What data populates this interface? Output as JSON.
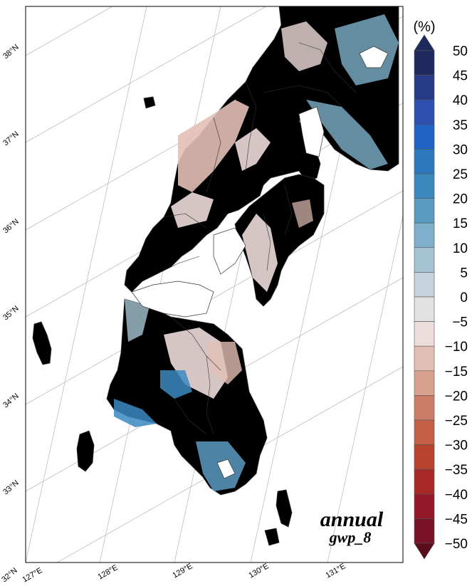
{
  "annotation": {
    "period": "annual",
    "scenario": "gwp_8"
  },
  "colorbar": {
    "unit": "(%)",
    "labels": [
      "50",
      "45",
      "40",
      "35",
      "30",
      "25",
      "20",
      "15",
      "10",
      "5",
      "0",
      "−5",
      "−10",
      "−15",
      "−20",
      "−25",
      "−30",
      "−35",
      "−40",
      "−45",
      "−50"
    ],
    "colors": [
      "#1e2a5e",
      "#263a86",
      "#2c4fb0",
      "#1f63c4",
      "#2b78bd",
      "#3b88bf",
      "#5a9bc2",
      "#7eb0cb",
      "#a6c3d3",
      "#c7d3dc",
      "#e1e1e1",
      "#ecdcda",
      "#e2bfb5",
      "#d7a08f",
      "#cc7d67",
      "#c25f45",
      "#b8432f",
      "#a72a27",
      "#941a2a",
      "#7a1226",
      "#5a0d1a"
    ]
  },
  "axes": {
    "lat_labels": [
      "32°N",
      "33°N",
      "34°N",
      "35°N",
      "36°N",
      "37°N",
      "38°N"
    ],
    "lon_labels": [
      "127°E",
      "128°E",
      "129°E",
      "130°E",
      "131°E"
    ]
  },
  "map": {
    "land_color": "#c6d6df",
    "boundary_color": "#333333"
  }
}
